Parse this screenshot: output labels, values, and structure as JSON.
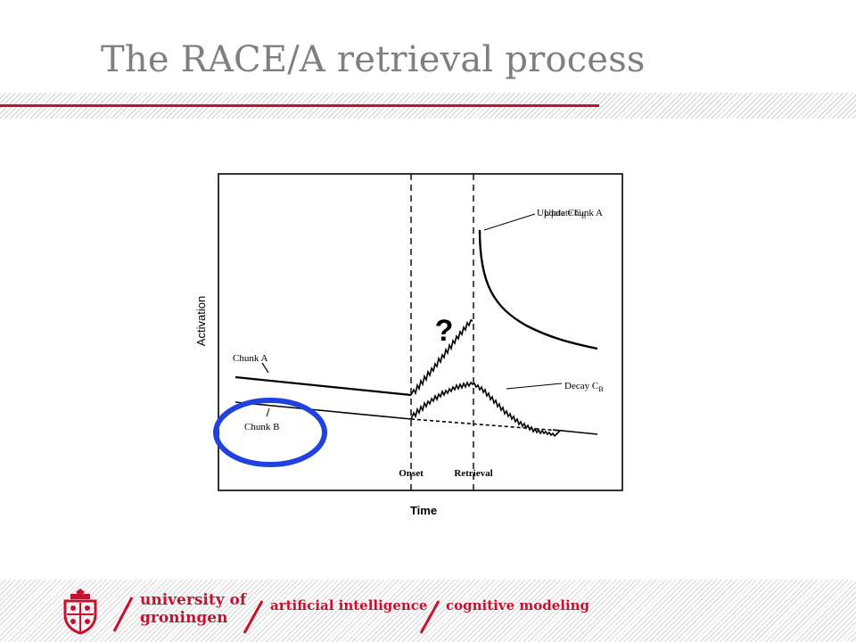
{
  "slide": {
    "title": "The RACE/A retrieval process"
  },
  "figure": {
    "question_mark": "?",
    "labels": {
      "y_axis": "Activation",
      "x_axis": "Time",
      "onset": "Onset",
      "retrieval": "Retrieval",
      "chunk_a": "Chunk A",
      "chunk_b": "Chunk B",
      "update_overlap": "Update Chunk A",
      "update_cb": "Update C",
      "update_cb_sub": "B",
      "decay": "Decay C",
      "decay_sub": "B"
    },
    "highlight_color": "#2042e0"
  },
  "footer": {
    "university_line1": "university of",
    "university_line2": "groningen",
    "department": "artificial intelligence",
    "group": "cognitive modeling",
    "brand_color": "#c8102e"
  }
}
